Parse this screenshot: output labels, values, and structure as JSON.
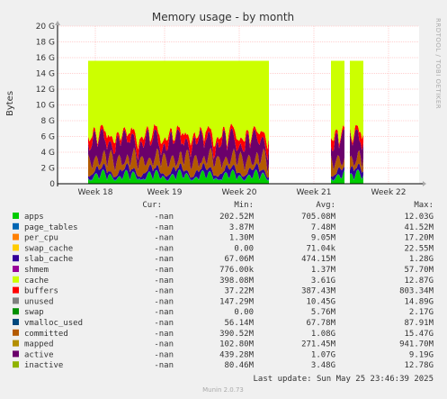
{
  "chart_data": {
    "type": "area",
    "title": "Memory usage - by month",
    "ylabel": "Bytes",
    "side_text": "RRDTOOL / TOBI OETIKER",
    "ylim": [
      0,
      20
    ],
    "y_unit": "G",
    "y_ticks": [
      "0",
      "2 G",
      "4 G",
      "6 G",
      "8 G",
      "10 G",
      "12 G",
      "14 G",
      "16 G",
      "18 G",
      "20 G"
    ],
    "x_labels": [
      "Week 18",
      "Week 19",
      "Week 20",
      "Week 21",
      "Week 22"
    ],
    "legend_headers": {
      "cur": "Cur:",
      "min": "Min:",
      "avg": "Avg:",
      "max": "Max:"
    },
    "series": [
      {
        "name": "apps",
        "color": "#00cc00",
        "cur": "-nan",
        "min": "202.52M",
        "avg": "705.08M",
        "max": "12.03G"
      },
      {
        "name": "page_tables",
        "color": "#0066b3",
        "cur": "-nan",
        "min": "3.87M",
        "avg": "7.48M",
        "max": "41.52M"
      },
      {
        "name": "per_cpu",
        "color": "#ff8000",
        "cur": "-nan",
        "min": "1.30M",
        "avg": "9.05M",
        "max": "17.20M"
      },
      {
        "name": "swap_cache",
        "color": "#ffcc00",
        "cur": "-nan",
        "min": "0.00",
        "avg": "71.04k",
        "max": "22.55M"
      },
      {
        "name": "slab_cache",
        "color": "#330099",
        "cur": "-nan",
        "min": "67.06M",
        "avg": "474.15M",
        "max": "1.28G"
      },
      {
        "name": "shmem",
        "color": "#990099",
        "cur": "-nan",
        "min": "776.00k",
        "avg": "1.37M",
        "max": "57.70M"
      },
      {
        "name": "cache",
        "color": "#ccff00",
        "cur": "-nan",
        "min": "398.08M",
        "avg": "3.61G",
        "max": "12.87G"
      },
      {
        "name": "buffers",
        "color": "#ff0000",
        "cur": "-nan",
        "min": "37.22M",
        "avg": "387.43M",
        "max": "803.34M"
      },
      {
        "name": "unused",
        "color": "#808080",
        "cur": "-nan",
        "min": "147.29M",
        "avg": "10.45G",
        "max": "14.89G"
      },
      {
        "name": "swap",
        "color": "#008f00",
        "cur": "-nan",
        "min": "0.00",
        "avg": "5.76M",
        "max": "2.17G"
      },
      {
        "name": "vmalloc_used",
        "color": "#00487d",
        "cur": "-nan",
        "min": "56.14M",
        "avg": "67.78M",
        "max": "87.91M"
      },
      {
        "name": "committed",
        "color": "#b35a00",
        "cur": "-nan",
        "min": "390.52M",
        "avg": "1.08G",
        "max": "15.47G"
      },
      {
        "name": "mapped",
        "color": "#b38f00",
        "cur": "-nan",
        "min": "102.80M",
        "avg": "271.45M",
        "max": "941.70M"
      },
      {
        "name": "active",
        "color": "#6b006b",
        "cur": "-nan",
        "min": "439.28M",
        "avg": "1.07G",
        "max": "9.19G"
      },
      {
        "name": "inactive",
        "color": "#8fb300",
        "cur": "-nan",
        "min": "80.46M",
        "avg": "3.48G",
        "max": "12.78G"
      }
    ],
    "last_update": "Last update: Sun May 25 23:46:39 2025",
    "footer": "Munin 2.0.73"
  }
}
